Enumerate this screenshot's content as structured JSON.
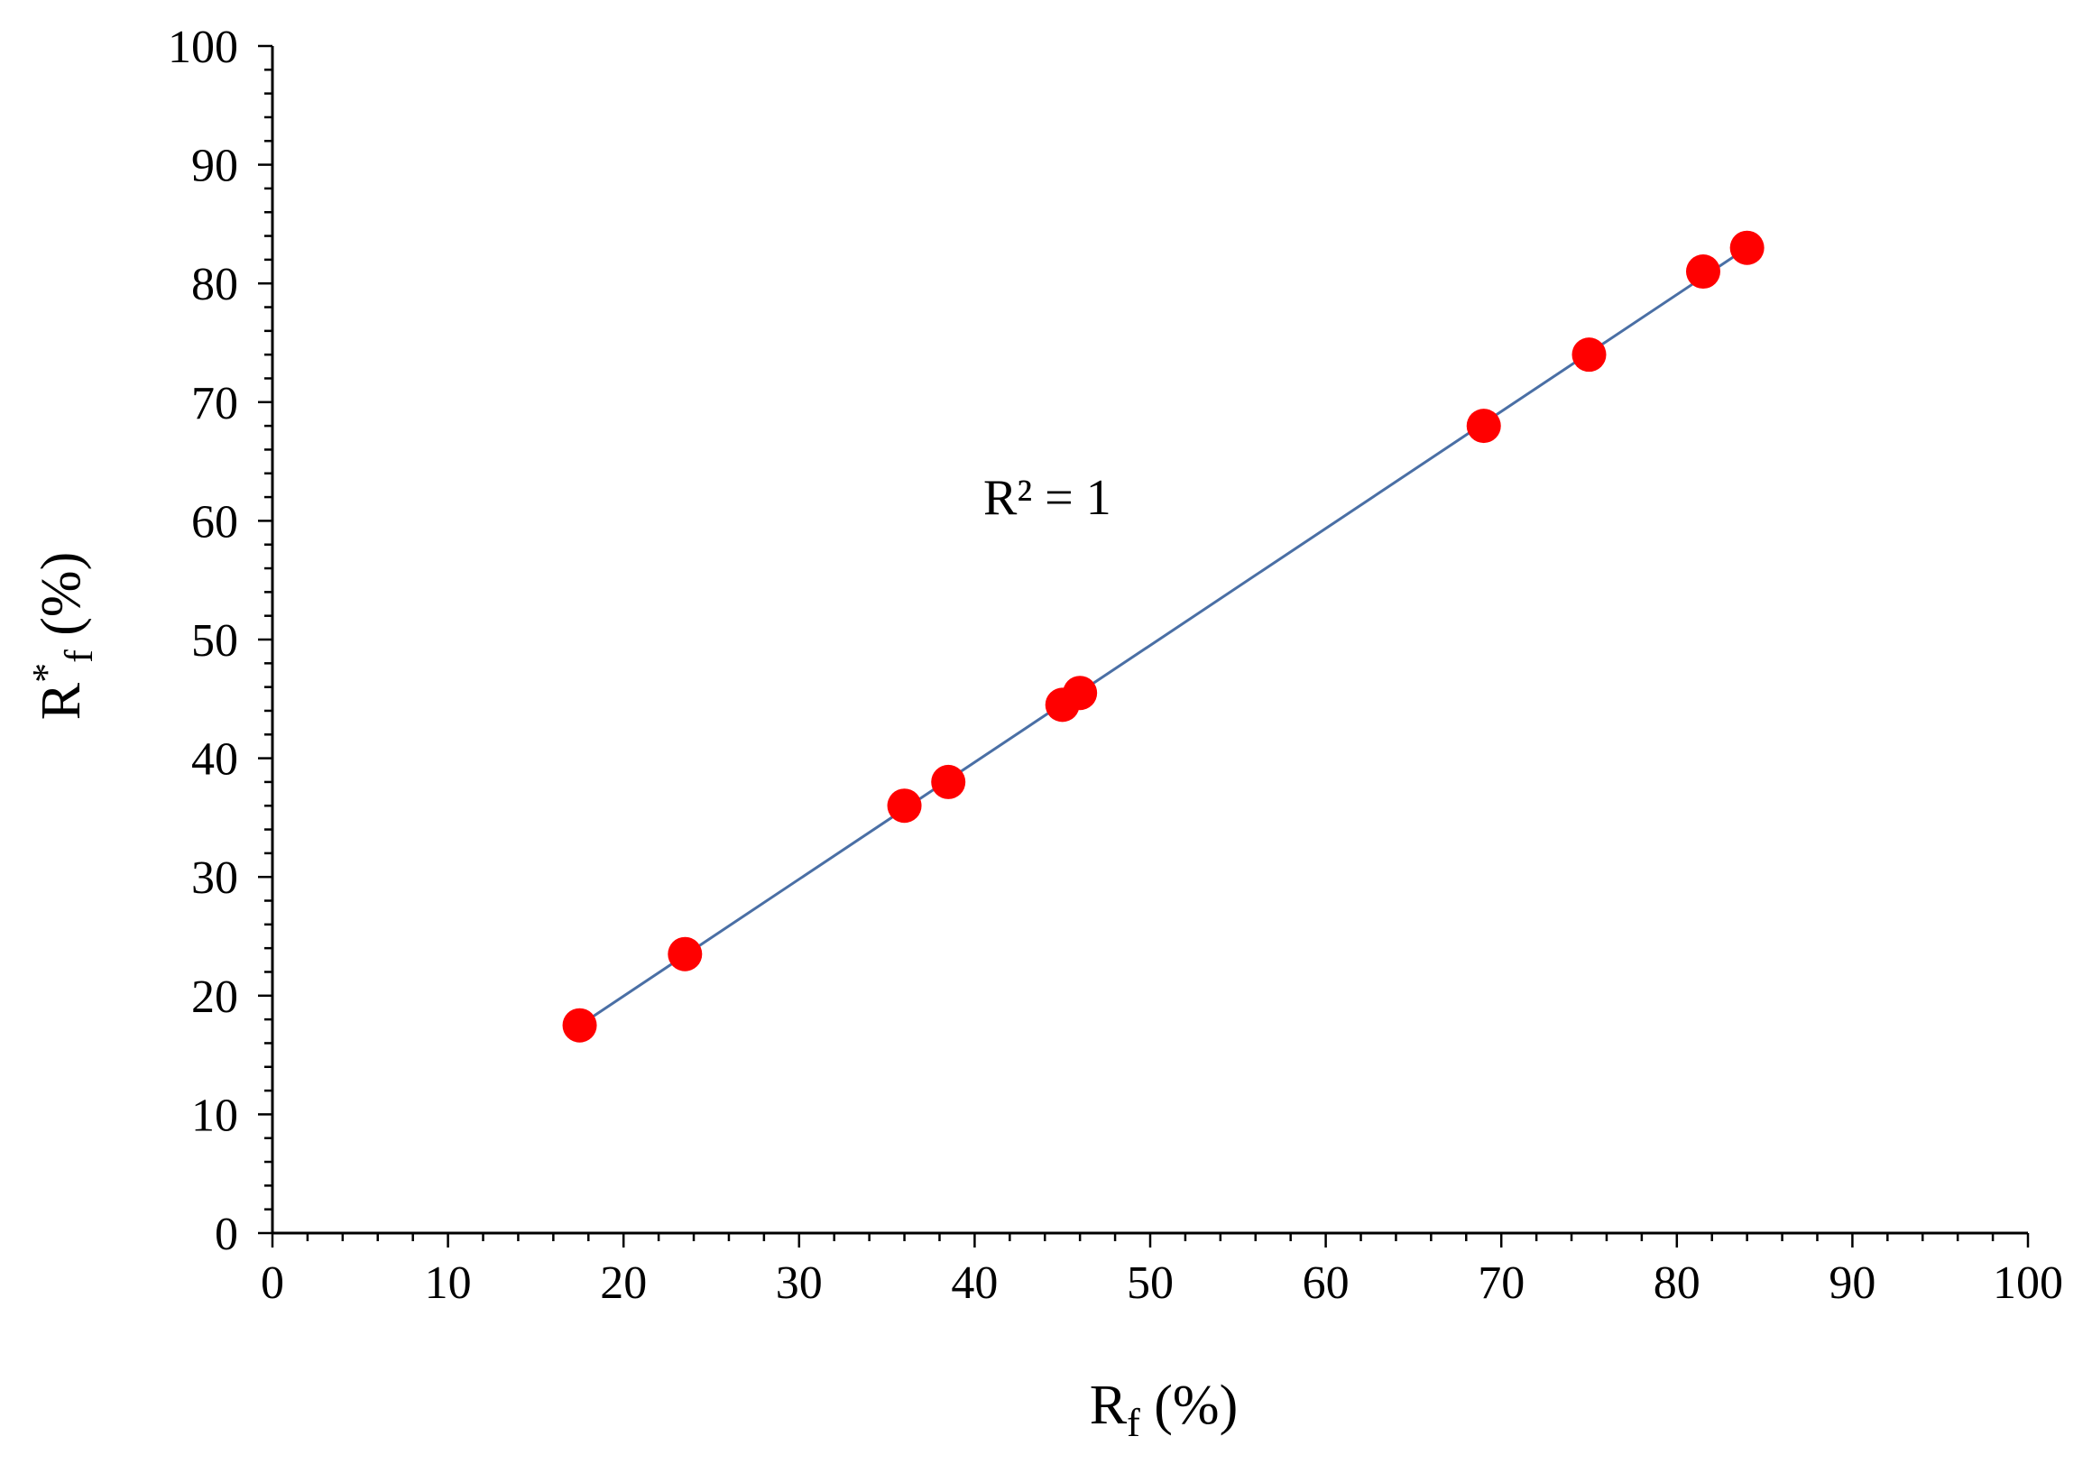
{
  "chart_data": {
    "type": "scatter",
    "x": [
      17.5,
      23.5,
      36.0,
      38.5,
      45.0,
      46.0,
      69.0,
      75.0,
      81.5,
      84.0
    ],
    "y": [
      17.5,
      23.5,
      36.0,
      38.0,
      44.5,
      45.5,
      68.0,
      74.0,
      81.0,
      83.0
    ],
    "trendline": {
      "x": [
        17.5,
        84.0
      ],
      "y": [
        17.5,
        83.0
      ]
    },
    "xlim": [
      0,
      100
    ],
    "ylim": [
      0,
      100
    ],
    "xticks": [
      0,
      10,
      20,
      30,
      40,
      50,
      60,
      70,
      80,
      90,
      100
    ],
    "yticks": [
      0,
      10,
      20,
      30,
      40,
      50,
      60,
      70,
      80,
      90,
      100
    ],
    "xlabel": {
      "main": "R",
      "sub": "f",
      "unit": " (%)"
    },
    "ylabel": {
      "main": "R",
      "sup": "*",
      "sub": "f",
      "unit": " (%)"
    },
    "annotation": "R² = 1",
    "grid": false,
    "marker_color": "#ff0000",
    "line_color": "#4a6fa5"
  }
}
